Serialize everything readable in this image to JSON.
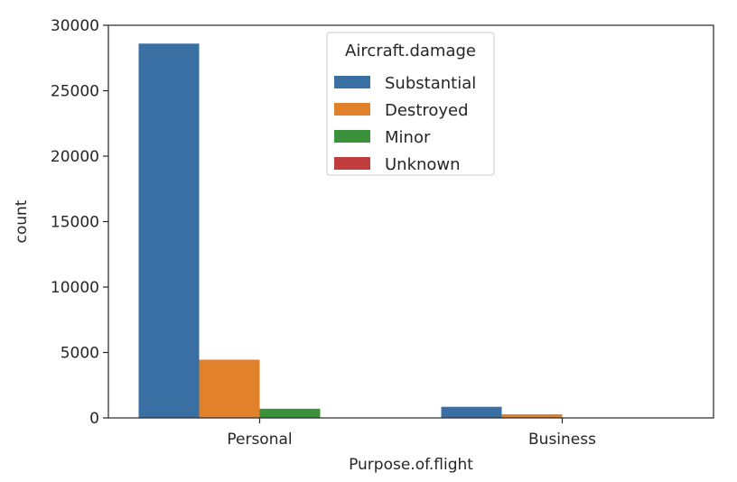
{
  "chart_data": {
    "type": "bar",
    "title": "",
    "xlabel": "Purpose.of.flight",
    "ylabel": "count",
    "categories": [
      "Personal",
      "Business"
    ],
    "ylim": [
      0,
      30000
    ],
    "yticks": [
      0,
      5000,
      10000,
      15000,
      20000,
      25000,
      30000
    ],
    "grid": false,
    "legend": {
      "title": "Aircraft.damage",
      "placement": "top-center"
    },
    "series": [
      {
        "name": "Substantial",
        "color": "#3a6fa3",
        "values": [
          28600,
          850
        ]
      },
      {
        "name": "Destroyed",
        "color": "#e1812c",
        "values": [
          4450,
          280
        ]
      },
      {
        "name": "Minor",
        "color": "#3a923a",
        "values": [
          700,
          15
        ]
      },
      {
        "name": "Unknown",
        "color": "#c03d3e",
        "values": [
          0,
          0
        ]
      }
    ]
  }
}
